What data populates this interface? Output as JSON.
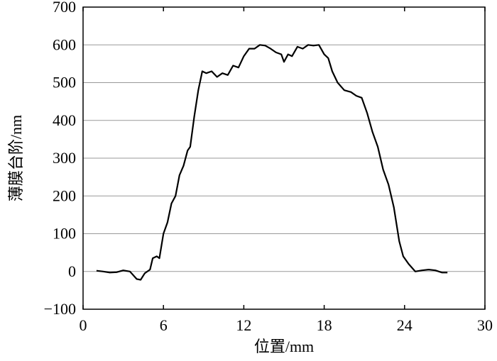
{
  "chart_data": {
    "type": "line",
    "xlabel": "位置/mm",
    "ylabel": "薄膜台阶/nm",
    "x": [
      1,
      1.5,
      2,
      2.5,
      3,
      3.5,
      4,
      4.3,
      4.6,
      5,
      5.2,
      5.5,
      5.7,
      6,
      6.3,
      6.6,
      6.9,
      7.2,
      7.5,
      7.8,
      8,
      8.3,
      8.6,
      8.9,
      9.2,
      9.6,
      10,
      10.4,
      10.8,
      11.2,
      11.6,
      12,
      12.4,
      12.8,
      13.2,
      13.6,
      14,
      14.4,
      14.8,
      15,
      15.3,
      15.6,
      16,
      16.4,
      16.8,
      17.2,
      17.6,
      18,
      18.3,
      18.6,
      19,
      19.5,
      20,
      20.4,
      20.8,
      21.2,
      21.6,
      22,
      22.4,
      22.8,
      23.2,
      23.6,
      23.9,
      24.3,
      24.8,
      25.3,
      25.8,
      26.3,
      26.8,
      27.2
    ],
    "values": [
      2,
      0,
      -3,
      -2,
      3,
      0,
      -20,
      -22,
      -5,
      5,
      35,
      40,
      35,
      100,
      130,
      180,
      200,
      255,
      280,
      320,
      330,
      410,
      480,
      530,
      525,
      530,
      515,
      525,
      520,
      545,
      540,
      570,
      590,
      590,
      600,
      598,
      590,
      580,
      575,
      555,
      575,
      570,
      595,
      590,
      600,
      598,
      600,
      575,
      565,
      530,
      500,
      480,
      475,
      465,
      460,
      420,
      370,
      330,
      270,
      230,
      170,
      80,
      40,
      20,
      0,
      3,
      5,
      3,
      -3,
      -3
    ],
    "color": "#000000",
    "xlim": [
      0,
      30
    ],
    "xticks": [
      0,
      6,
      12,
      18,
      24,
      30
    ],
    "ylim": [
      -100,
      700
    ],
    "yticks": [
      {
        "value": -100,
        "label": "−100"
      },
      0,
      100,
      200,
      300,
      400,
      500,
      600,
      700
    ],
    "grid": true
  }
}
